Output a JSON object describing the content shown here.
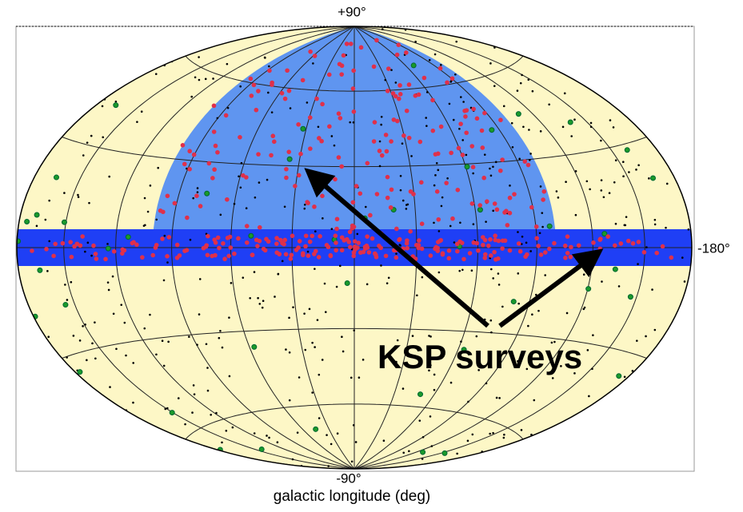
{
  "labels": {
    "north": "+90°",
    "south": "-90°",
    "east": "-180°",
    "xlabel": "galactic longitude (deg)",
    "annotation": "KSP surveys"
  }
}
